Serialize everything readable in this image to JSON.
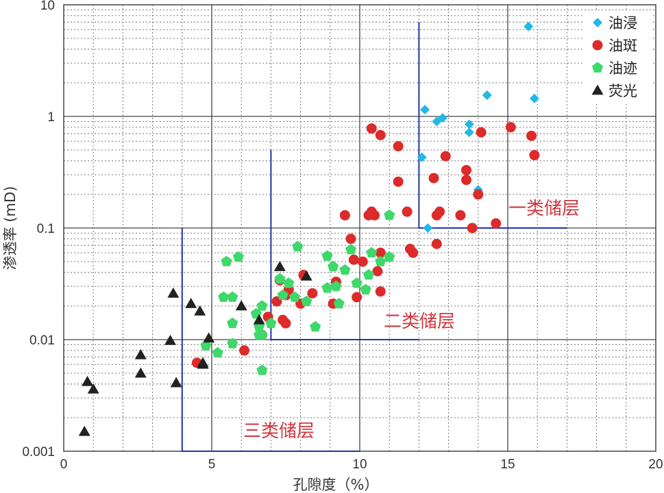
{
  "chart_data": {
    "type": "scatter",
    "xlabel": "孔隙度（%）",
    "ylabel": "渗透率 (mD)",
    "xlim": [
      0,
      20
    ],
    "ylim": [
      0.001,
      10
    ],
    "y_scale": "log",
    "grid": true,
    "legend_position": "top-right",
    "x_ticks": [
      "0",
      "5",
      "10",
      "15",
      "20"
    ],
    "y_ticks": [
      "0.001",
      "0.01",
      "0.1",
      "1",
      "10"
    ],
    "series": [
      {
        "name": "油浸",
        "marker": "diamond",
        "color": "#22b8e8",
        "points": [
          [
            15.7,
            6.4
          ],
          [
            12.2,
            1.15
          ],
          [
            12.8,
            0.97
          ],
          [
            12.6,
            0.9
          ],
          [
            14.3,
            1.55
          ],
          [
            15.9,
            1.45
          ],
          [
            13.7,
            0.85
          ],
          [
            13.7,
            0.72
          ],
          [
            12.1,
            0.43
          ],
          [
            14.0,
            0.22
          ],
          [
            12.3,
            0.1
          ]
        ]
      },
      {
        "name": "油斑",
        "marker": "circle",
        "color": "#dd2a2a",
        "points": [
          [
            10.4,
            0.78
          ],
          [
            10.7,
            0.68
          ],
          [
            11.3,
            0.54
          ],
          [
            12.9,
            0.44
          ],
          [
            14.1,
            0.72
          ],
          [
            15.1,
            0.8
          ],
          [
            15.8,
            0.67
          ],
          [
            15.9,
            0.45
          ],
          [
            13.6,
            0.33
          ],
          [
            13.6,
            0.27
          ],
          [
            12.5,
            0.28
          ],
          [
            11.3,
            0.26
          ],
          [
            14.0,
            0.2
          ],
          [
            9.5,
            0.13
          ],
          [
            10.3,
            0.13
          ],
          [
            10.4,
            0.14
          ],
          [
            10.5,
            0.13
          ],
          [
            11.6,
            0.14
          ],
          [
            12.6,
            0.13
          ],
          [
            12.7,
            0.14
          ],
          [
            13.4,
            0.13
          ],
          [
            13.8,
            0.1
          ],
          [
            14.6,
            0.11
          ],
          [
            12.6,
            0.072
          ],
          [
            9.7,
            0.08
          ],
          [
            10.1,
            0.05
          ],
          [
            10.7,
            0.06
          ],
          [
            11.7,
            0.065
          ],
          [
            11.8,
            0.06
          ],
          [
            9.8,
            0.052
          ],
          [
            10.6,
            0.041
          ],
          [
            8.1,
            0.038
          ],
          [
            9.2,
            0.033
          ],
          [
            7.3,
            0.034
          ],
          [
            7.5,
            0.025
          ],
          [
            7.2,
            0.022
          ],
          [
            7.6,
            0.028
          ],
          [
            8.4,
            0.026
          ],
          [
            8.0,
            0.021
          ],
          [
            9.1,
            0.021
          ],
          [
            9.9,
            0.024
          ],
          [
            10.7,
            0.027
          ],
          [
            6.9,
            0.016
          ],
          [
            7.4,
            0.015
          ],
          [
            7.5,
            0.014
          ],
          [
            6.7,
            0.011
          ],
          [
            6.1,
            0.008
          ],
          [
            4.5,
            0.0062
          ]
        ]
      },
      {
        "name": "油迹",
        "marker": "pentagon",
        "color": "#3fd86a",
        "points": [
          [
            5.5,
            0.05
          ],
          [
            5.9,
            0.055
          ],
          [
            7.9,
            0.068
          ],
          [
            8.9,
            0.056
          ],
          [
            9.1,
            0.045
          ],
          [
            9.7,
            0.064
          ],
          [
            10.4,
            0.06
          ],
          [
            11.0,
            0.055
          ],
          [
            10.7,
            0.05
          ],
          [
            11.0,
            0.13
          ],
          [
            8.9,
            0.029
          ],
          [
            9.5,
            0.042
          ],
          [
            9.9,
            0.032
          ],
          [
            10.3,
            0.038
          ],
          [
            7.3,
            0.035
          ],
          [
            7.6,
            0.032
          ],
          [
            9.2,
            0.03
          ],
          [
            7.4,
            0.025
          ],
          [
            7.8,
            0.024
          ],
          [
            8.2,
            0.022
          ],
          [
            9.3,
            0.021
          ],
          [
            10.2,
            0.028
          ],
          [
            5.4,
            0.024
          ],
          [
            5.7,
            0.024
          ],
          [
            6.7,
            0.02
          ],
          [
            5.7,
            0.014
          ],
          [
            6.5,
            0.017
          ],
          [
            7.0,
            0.014
          ],
          [
            6.6,
            0.013
          ],
          [
            8.5,
            0.013
          ],
          [
            6.6,
            0.011
          ],
          [
            6.7,
            0.011
          ],
          [
            5.7,
            0.0092
          ],
          [
            4.8,
            0.0088
          ],
          [
            5.2,
            0.0076
          ],
          [
            6.7,
            0.0053
          ]
        ]
      },
      {
        "name": "荧光",
        "marker": "triangle",
        "color": "#222222",
        "points": [
          [
            3.7,
            0.026
          ],
          [
            4.3,
            0.021
          ],
          [
            4.6,
            0.018
          ],
          [
            6.0,
            0.02
          ],
          [
            6.6,
            0.015
          ],
          [
            7.3,
            0.045
          ],
          [
            8.2,
            0.037
          ],
          [
            3.6,
            0.0098
          ],
          [
            4.9,
            0.0103
          ],
          [
            4.7,
            0.0062
          ],
          [
            4.7,
            0.006
          ],
          [
            2.6,
            0.0073
          ],
          [
            2.6,
            0.005
          ],
          [
            3.8,
            0.0041
          ],
          [
            0.8,
            0.0042
          ],
          [
            1.0,
            0.0036
          ],
          [
            0.7,
            0.0015
          ]
        ]
      }
    ],
    "annotations": [
      "一类储层",
      "二类储层",
      "三类储层"
    ],
    "zone_boundaries": [
      {
        "label": "一类储层",
        "x_from": 12,
        "x_to": 17,
        "y_from": 0.1,
        "y_to": 7
      },
      {
        "label": "二类储层",
        "x_from": 7,
        "x_to": 12,
        "y_from": 0.01,
        "y_to": 0.5
      },
      {
        "label": "三类储层",
        "x_from": 4,
        "x_to": 10,
        "y_from": 0.001,
        "y_to": 0.1
      }
    ],
    "zone_line_color": "#2233aa"
  }
}
